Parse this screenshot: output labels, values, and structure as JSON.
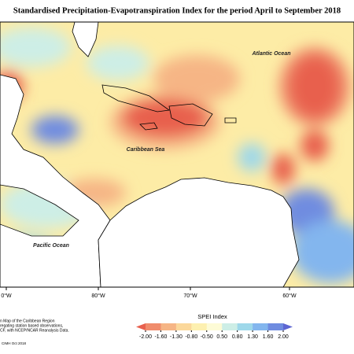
{
  "title": "Standardised Precipitation-Evapotranspiration Index for the period April to September 2018",
  "map": {
    "labels": {
      "atlantic": "Atlantic Ocean",
      "caribbean": "Caribbean Sea",
      "pacific": "Pacific Ocean"
    },
    "longitudes": [
      "0°W",
      "80°W",
      "70°W",
      "60°W"
    ]
  },
  "legend": {
    "title": "SPEI Index",
    "ticks": [
      {
        "value": -2,
        "label": "-2.00"
      },
      {
        "value": -1.6,
        "label": "-1.60"
      },
      {
        "value": -1.3,
        "label": "-1.30"
      },
      {
        "value": -0.8,
        "label": "-0.80"
      },
      {
        "value": -0.5,
        "label": "-0.50"
      },
      {
        "value": 0.5,
        "label": "0.50"
      },
      {
        "value": 0.8,
        "label": "0.80"
      },
      {
        "value": 1.3,
        "label": "1.30"
      },
      {
        "value": 1.6,
        "label": "1.60"
      },
      {
        "value": 2,
        "label": "2.00"
      }
    ],
    "colors": [
      "#e8604e",
      "#f08c6c",
      "#f6b585",
      "#fbd89b",
      "#fdf0b0",
      "#fdfbd6",
      "#cdeee6",
      "#9ed8ea",
      "#83b6ee",
      "#6f8ce0",
      "#5d66d2"
    ]
  },
  "footnote": [
    "n Map of the Caribbean Region",
    "regating station based observations,",
    "CF, with NCEP/NCAR Reanalysis Data."
  ],
  "credit": "CIMH Oct 2018"
}
